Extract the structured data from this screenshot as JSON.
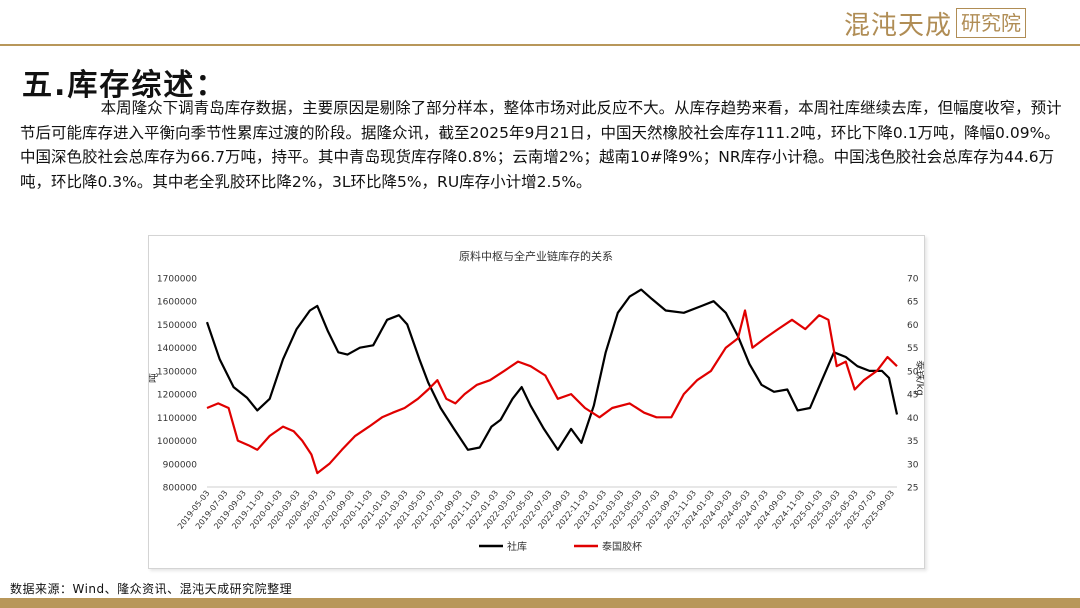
{
  "brand": {
    "name": "混沌天成",
    "dept": "研究院"
  },
  "section_title": "五.库存综述：",
  "paragraph": "本周隆众下调青岛库存数据，主要原因是剔除了部分样本，整体市场对此反应不大。从库存趋势来看，本周社库继续去库，但幅度收窄，预计节后可能库存进入平衡向季节性累库过渡的阶段。据隆众讯，截至2025年9月21日，中国天然橡胶社会库存111.2吨，环比下降0.1万吨，降幅0.09%。中国深色胶社会总库存为66.7万吨，持平。其中青岛现货库存降0.8%；云南增2%；越南10#降9%；NR库存小计稳。中国浅色胶社会总库存为44.6万吨，环比降0.3%。其中老全乳胶环比降2%，3L环比降5%，RU库存小计增2.5%。",
  "source": "数据来源：Wind、隆众资讯、混沌天成研究院整理",
  "colors": {
    "gold": "#b8975a",
    "series_black": "#000000",
    "series_red": "#e00000"
  },
  "chart_data": {
    "type": "line",
    "title": "原料中枢与全产业链库存的关系",
    "ylabel": "吨",
    "y2label": "泰铢/kg",
    "ylim": [
      800000,
      1700000
    ],
    "y2lim": [
      25,
      70
    ],
    "yticks": [
      "800000",
      "900000",
      "1000000",
      "1100000",
      "1200000",
      "1300000",
      "1400000",
      "1500000",
      "1600000",
      "1700000"
    ],
    "y2ticks": [
      "25",
      "30",
      "35",
      "40",
      "45",
      "50",
      "55",
      "60",
      "65",
      "70"
    ],
    "xlim": [
      "2019-05-03",
      "2025-09-21"
    ],
    "x_tick_labels": [
      "2019-05-03",
      "2019-07-03",
      "2019-09-03",
      "2019-11-03",
      "2020-01-03",
      "2020-03-03",
      "2020-05-03",
      "2020-07-03",
      "2020-09-03",
      "2020-11-03",
      "2021-01-03",
      "2021-03-03",
      "2021-05-03",
      "2021-07-03",
      "2021-09-03",
      "2021-11-03",
      "2022-01-03",
      "2022-03-03",
      "2022-05-03",
      "2022-07-03",
      "2022-09-03",
      "2022-11-03",
      "2023-01-03",
      "2023-03-03",
      "2023-05-03",
      "2023-07-03",
      "2023-09-03",
      "2023-11-03",
      "2024-01-03",
      "2024-03-03",
      "2024-05-03",
      "2024-07-03",
      "2024-09-03",
      "2024-11-03",
      "2025-01-03",
      "2025-03-03",
      "2025-05-03",
      "2025-07-03",
      "2025-09-03"
    ],
    "legend_position": "bottom-center",
    "series": [
      {
        "name": "社库",
        "axis": "left",
        "color": "#000000",
        "points": [
          [
            "2019-05-03",
            1510000
          ],
          [
            "2019-06-15",
            1350000
          ],
          [
            "2019-08-01",
            1230000
          ],
          [
            "2019-09-15",
            1185000
          ],
          [
            "2019-10-20",
            1130000
          ],
          [
            "2019-12-01",
            1180000
          ],
          [
            "2020-01-15",
            1350000
          ],
          [
            "2020-03-01",
            1480000
          ],
          [
            "2020-04-15",
            1560000
          ],
          [
            "2020-05-10",
            1580000
          ],
          [
            "2020-06-15",
            1470000
          ],
          [
            "2020-07-20",
            1380000
          ],
          [
            "2020-08-20",
            1370000
          ],
          [
            "2020-10-01",
            1400000
          ],
          [
            "2020-11-15",
            1410000
          ],
          [
            "2021-01-01",
            1520000
          ],
          [
            "2021-02-10",
            1540000
          ],
          [
            "2021-03-10",
            1500000
          ],
          [
            "2021-04-20",
            1350000
          ],
          [
            "2021-05-20",
            1250000
          ],
          [
            "2021-07-01",
            1140000
          ],
          [
            "2021-08-15",
            1050000
          ],
          [
            "2021-10-01",
            960000
          ],
          [
            "2021-11-10",
            970000
          ],
          [
            "2021-12-20",
            1060000
          ],
          [
            "2022-01-20",
            1090000
          ],
          [
            "2022-03-01",
            1180000
          ],
          [
            "2022-04-01",
            1230000
          ],
          [
            "2022-05-01",
            1150000
          ],
          [
            "2022-06-15",
            1050000
          ],
          [
            "2022-08-01",
            960000
          ],
          [
            "2022-09-15",
            1050000
          ],
          [
            "2022-10-20",
            990000
          ],
          [
            "2022-12-01",
            1150000
          ],
          [
            "2023-01-10",
            1380000
          ],
          [
            "2023-02-20",
            1550000
          ],
          [
            "2023-04-01",
            1620000
          ],
          [
            "2023-05-10",
            1650000
          ],
          [
            "2023-06-15",
            1610000
          ],
          [
            "2023-08-01",
            1560000
          ],
          [
            "2023-10-01",
            1550000
          ],
          [
            "2023-12-01",
            1580000
          ],
          [
            "2024-01-10",
            1600000
          ],
          [
            "2024-02-20",
            1550000
          ],
          [
            "2024-04-01",
            1450000
          ],
          [
            "2024-05-10",
            1330000
          ],
          [
            "2024-06-20",
            1240000
          ],
          [
            "2024-08-01",
            1210000
          ],
          [
            "2024-09-15",
            1220000
          ],
          [
            "2024-10-20",
            1130000
          ],
          [
            "2024-12-01",
            1140000
          ],
          [
            "2025-01-10",
            1260000
          ],
          [
            "2025-02-20",
            1380000
          ],
          [
            "2025-04-01",
            1360000
          ],
          [
            "2025-05-10",
            1320000
          ],
          [
            "2025-06-20",
            1300000
          ],
          [
            "2025-08-01",
            1300000
          ],
          [
            "2025-08-25",
            1270000
          ],
          [
            "2025-09-21",
            1112000
          ]
        ]
      },
      {
        "name": "泰国胶杯",
        "axis": "right",
        "color": "#e00000",
        "points": [
          [
            "2019-05-03",
            42
          ],
          [
            "2019-06-10",
            43
          ],
          [
            "2019-07-15",
            42
          ],
          [
            "2019-08-15",
            35
          ],
          [
            "2019-09-20",
            34
          ],
          [
            "2019-10-20",
            33
          ],
          [
            "2019-12-01",
            36
          ],
          [
            "2020-01-15",
            38
          ],
          [
            "2020-02-20",
            37
          ],
          [
            "2020-03-20",
            35
          ],
          [
            "2020-04-20",
            32
          ],
          [
            "2020-05-10",
            28
          ],
          [
            "2020-06-20",
            30
          ],
          [
            "2020-08-01",
            33
          ],
          [
            "2020-09-15",
            36
          ],
          [
            "2020-11-01",
            38
          ],
          [
            "2020-12-15",
            40
          ],
          [
            "2021-01-20",
            41
          ],
          [
            "2021-03-01",
            42
          ],
          [
            "2021-04-15",
            44
          ],
          [
            "2021-05-20",
            46
          ],
          [
            "2021-06-20",
            48
          ],
          [
            "2021-07-20",
            44
          ],
          [
            "2021-08-20",
            43
          ],
          [
            "2021-09-20",
            45
          ],
          [
            "2021-11-01",
            47
          ],
          [
            "2021-12-15",
            48
          ],
          [
            "2022-02-01",
            50
          ],
          [
            "2022-03-20",
            52
          ],
          [
            "2022-05-01",
            51
          ],
          [
            "2022-06-20",
            49
          ],
          [
            "2022-08-01",
            44
          ],
          [
            "2022-09-15",
            45
          ],
          [
            "2022-11-01",
            42
          ],
          [
            "2022-12-20",
            40
          ],
          [
            "2023-02-01",
            42
          ],
          [
            "2023-04-01",
            43
          ],
          [
            "2023-05-20",
            41
          ],
          [
            "2023-07-01",
            40
          ],
          [
            "2023-08-20",
            40
          ],
          [
            "2023-10-01",
            45
          ],
          [
            "2023-11-15",
            48
          ],
          [
            "2024-01-01",
            50
          ],
          [
            "2024-02-20",
            55
          ],
          [
            "2024-04-01",
            57
          ],
          [
            "2024-04-25",
            63
          ],
          [
            "2024-05-20",
            55
          ],
          [
            "2024-07-01",
            57
          ],
          [
            "2024-08-15",
            59
          ],
          [
            "2024-10-01",
            61
          ],
          [
            "2024-11-15",
            59
          ],
          [
            "2025-01-01",
            62
          ],
          [
            "2025-02-01",
            61
          ],
          [
            "2025-03-01",
            51
          ],
          [
            "2025-04-01",
            52
          ],
          [
            "2025-05-01",
            46
          ],
          [
            "2025-06-01",
            48
          ],
          [
            "2025-07-15",
            50
          ],
          [
            "2025-08-20",
            53
          ],
          [
            "2025-09-21",
            51
          ]
        ]
      }
    ]
  }
}
